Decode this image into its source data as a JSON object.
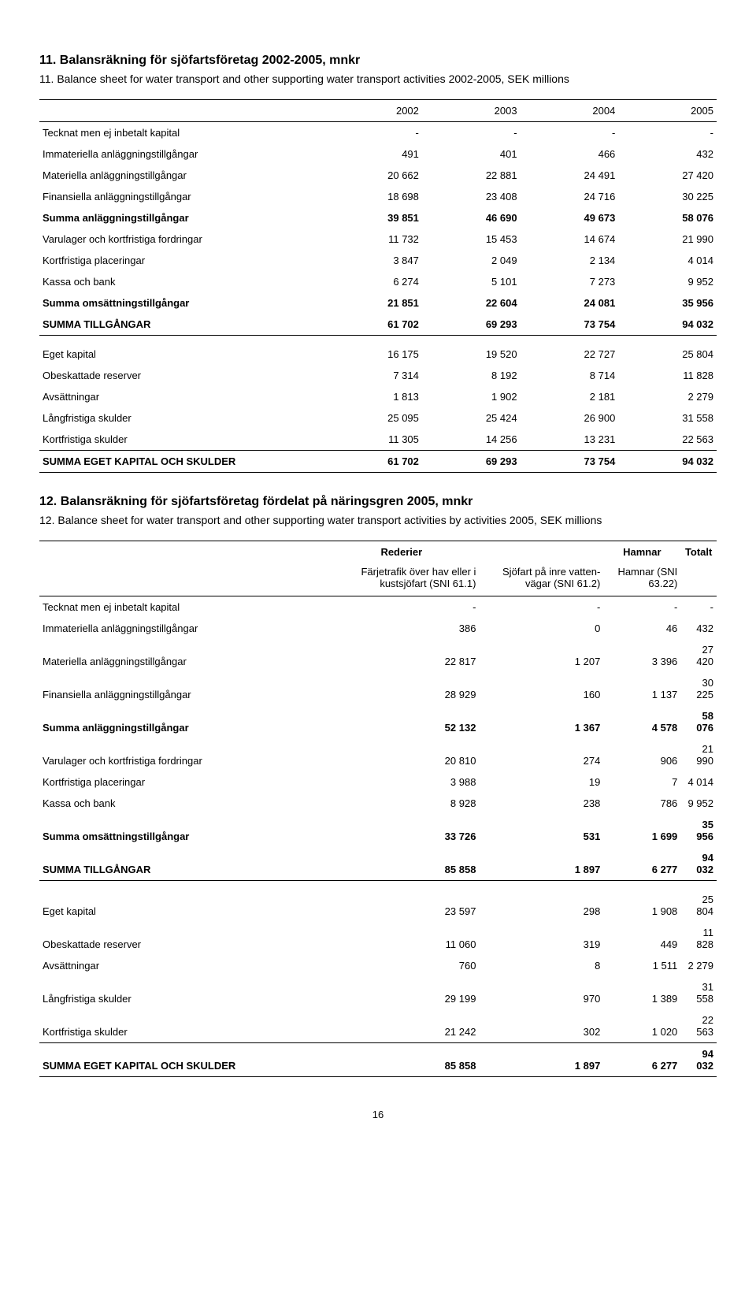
{
  "section11": {
    "title_sv": "11. Balansräkning för sjöfartsföretag 2002-2005, mnkr",
    "title_en": "11. Balance sheet for water transport and other supporting water transport activities 2002-2005, SEK millions",
    "years": [
      "2002",
      "2003",
      "2004",
      "2005"
    ],
    "rows": [
      {
        "label": "Tecknat men ej inbetalt kapital",
        "vals": [
          "-",
          "-",
          "-",
          "-"
        ]
      },
      {
        "label": "Immateriella anläggningstillgångar",
        "vals": [
          "491",
          "401",
          "466",
          "432"
        ]
      },
      {
        "label": "Materiella anläggningstillgångar",
        "vals": [
          "20 662",
          "22 881",
          "24 491",
          "27 420"
        ]
      },
      {
        "label": "Finansiella anläggningstillgångar",
        "vals": [
          "18 698",
          "23 408",
          "24 716",
          "30 225"
        ]
      },
      {
        "label": "Summa anläggningstillgångar",
        "vals": [
          "39 851",
          "46 690",
          "49 673",
          "58 076"
        ],
        "bold": true
      },
      {
        "label": "Varulager och kortfristiga fordringar",
        "vals": [
          "11 732",
          "15 453",
          "14 674",
          "21 990"
        ]
      },
      {
        "label": "Kortfristiga placeringar",
        "vals": [
          "3 847",
          "2 049",
          "2 134",
          "4 014"
        ]
      },
      {
        "label": "Kassa och bank",
        "vals": [
          "6 274",
          "5 101",
          "7 273",
          "9 952"
        ]
      },
      {
        "label": "Summa omsättningstillgångar",
        "vals": [
          "21 851",
          "22 604",
          "24 081",
          "35 956"
        ],
        "bold": true
      },
      {
        "label": "SUMMA TILLGÅNGAR",
        "vals": [
          "61 702",
          "69 293",
          "73 754",
          "94 032"
        ],
        "bold": true,
        "thick_bottom": true
      }
    ],
    "rows2": [
      {
        "label": "Eget kapital",
        "vals": [
          "16 175",
          "19 520",
          "22 727",
          "25 804"
        ],
        "gap": true
      },
      {
        "label": "Obeskattade reserver",
        "vals": [
          "7 314",
          "8 192",
          "8 714",
          "11 828"
        ]
      },
      {
        "label": "Avsättningar",
        "vals": [
          "1 813",
          "1 902",
          "2 181",
          "2 279"
        ]
      },
      {
        "label": "Långfristiga skulder",
        "vals": [
          "25 095",
          "25 424",
          "26 900",
          "31 558"
        ]
      },
      {
        "label": "Kortfristiga skulder",
        "vals": [
          "11 305",
          "14 256",
          "13 231",
          "22 563"
        ]
      },
      {
        "label": "SUMMA EGET KAPITAL OCH SKULDER",
        "vals": [
          "61 702",
          "69 293",
          "73 754",
          "94 032"
        ],
        "bold": true,
        "thin_top": true,
        "thick_bottom": true
      }
    ]
  },
  "section12": {
    "title_sv": "12. Balansräkning för sjöfartsföretag fördelat på näringsgren 2005, mnkr",
    "title_en": "12. Balance sheet for water transport and other supporting water transport activities by activities 2005, SEK millions",
    "group_heads": [
      "",
      "Rederier",
      "",
      "Hamnar",
      "Totalt"
    ],
    "sub_heads": [
      "",
      "Färjetrafik över hav eller i kustsjöfart (SNI 61.1)",
      "Sjöfart på inre vatten-vägar (SNI 61.2)",
      "Hamnar (SNI 63.22)",
      ""
    ],
    "rows": [
      {
        "label": "Tecknat men ej inbetalt kapital",
        "vals": [
          "-",
          "-",
          "-",
          "-"
        ]
      },
      {
        "label": "Immateriella anläggningstillgångar",
        "vals": [
          "386",
          "0",
          "46",
          "432"
        ]
      },
      {
        "label": "Materiella anläggningstillgångar",
        "vals": [
          "22 817",
          "1 207",
          "3 396",
          "27 420"
        ]
      },
      {
        "label": "Finansiella anläggningstillgångar",
        "vals": [
          "28 929",
          "160",
          "1 137",
          "30 225"
        ]
      },
      {
        "label": "Summa anläggningstillgångar",
        "vals": [
          "52 132",
          "1 367",
          "4 578",
          "58 076"
        ],
        "bold": true
      },
      {
        "label": "Varulager och kortfristiga fordringar",
        "vals": [
          "20 810",
          "274",
          "906",
          "21 990"
        ]
      },
      {
        "label": "Kortfristiga placeringar",
        "vals": [
          "3 988",
          "19",
          "7",
          "4 014"
        ]
      },
      {
        "label": "Kassa och bank",
        "vals": [
          "8 928",
          "238",
          "786",
          "9 952"
        ]
      },
      {
        "label": "Summa omsättningstillgångar",
        "vals": [
          "33 726",
          "531",
          "1 699",
          "35 956"
        ],
        "bold": true
      },
      {
        "label": "SUMMA TILLGÅNGAR",
        "vals": [
          "85 858",
          "1 897",
          "6 277",
          "94 032"
        ],
        "bold": true,
        "thick_bottom": true
      }
    ],
    "rows2": [
      {
        "label": "Eget kapital",
        "vals": [
          "23 597",
          "298",
          "1 908",
          "25 804"
        ],
        "gap": true
      },
      {
        "label": "Obeskattade reserver",
        "vals": [
          "11 060",
          "319",
          "449",
          "11 828"
        ]
      },
      {
        "label": "Avsättningar",
        "vals": [
          "760",
          "8",
          "1 511",
          "2 279"
        ]
      },
      {
        "label": "Långfristiga skulder",
        "vals": [
          "29 199",
          "970",
          "1 389",
          "31 558"
        ]
      },
      {
        "label": "Kortfristiga skulder",
        "vals": [
          "21 242",
          "302",
          "1 020",
          "22 563"
        ]
      },
      {
        "label": "SUMMA EGET KAPITAL OCH SKULDER",
        "vals": [
          "85 858",
          "1 897",
          "6 277",
          "94 032"
        ],
        "bold": true,
        "thin_top": true,
        "thick_bottom": true
      }
    ]
  },
  "page_number": "16"
}
